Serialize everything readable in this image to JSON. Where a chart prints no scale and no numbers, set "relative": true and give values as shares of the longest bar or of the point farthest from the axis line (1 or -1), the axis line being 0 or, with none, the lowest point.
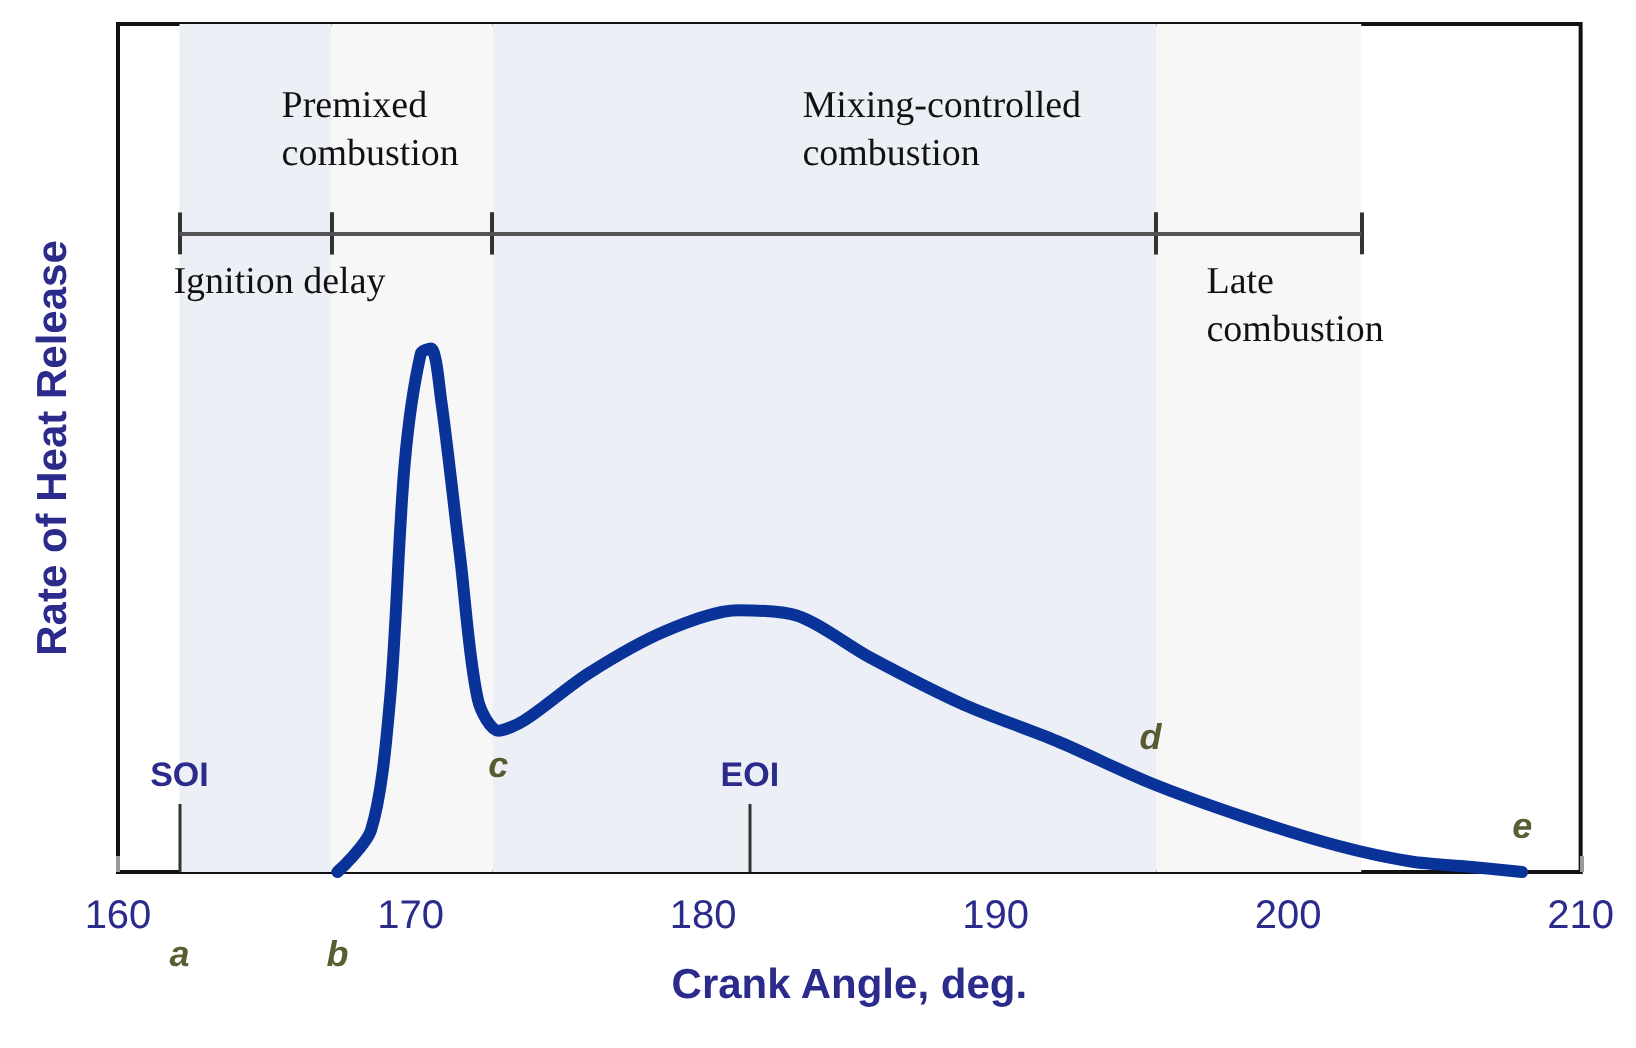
{
  "chart_data": {
    "type": "line",
    "relative": true,
    "xlabel": "Crank Angle, deg.",
    "ylabel": "Rate of Heat Release",
    "color": "#0a3399",
    "grid": false,
    "marker": "none",
    "line_style": "solid",
    "x": [
      167.5,
      168.65,
      169.3,
      169.8,
      170.35,
      170.7,
      171.05,
      171.7,
      172.3,
      173.0,
      173.9,
      176.1,
      178.7,
      181.2,
      183.2,
      185.7,
      188.9,
      192.1,
      195.3,
      198.5,
      201.7,
      204.2,
      206.2,
      208.0
    ],
    "values": [
      0,
      0.08,
      0.33,
      0.78,
      0.99,
      1,
      0.9,
      0.6,
      0.33,
      0.27,
      0.29,
      0.38,
      0.46,
      0.5,
      0.49,
      0.41,
      0.32,
      0.25,
      0.17,
      0.105,
      0.05,
      0.02,
      0.01,
      0
    ],
    "xlim": [
      160,
      210
    ],
    "xticks": [
      160,
      170,
      180,
      190,
      200,
      210
    ],
    "ref_lines": [
      {
        "axis": "x",
        "value": 162.1,
        "label": "SOI"
      },
      {
        "axis": "x",
        "value": 181.6,
        "label": "EOI"
      }
    ],
    "bands": [
      {
        "axis": "x",
        "from": 162.1,
        "to": 167.3,
        "label": "Ignition delay",
        "color": "#eceff6"
      },
      {
        "axis": "x",
        "from": 167.3,
        "to": 172.8,
        "label": "Premixed combustion",
        "color": "#f7f7f7"
      },
      {
        "axis": "x",
        "from": 172.8,
        "to": 195.5,
        "label": "Mixing-controlled combustion",
        "color": "#eceff6"
      },
      {
        "axis": "x",
        "from": 195.5,
        "to": 202.5,
        "label": "Late combustion",
        "color": "#f7f7f7"
      }
    ],
    "annotations": [
      {
        "text": "a",
        "x": 162.1,
        "y": 0
      },
      {
        "text": "b",
        "x": 167.5,
        "y": 0
      },
      {
        "text": "c",
        "x": 173.0,
        "y": 0.27
      },
      {
        "text": "d",
        "x": 195.3,
        "y": 0.17
      },
      {
        "text": "e",
        "x": 208.0,
        "y": 0
      }
    ]
  }
}
